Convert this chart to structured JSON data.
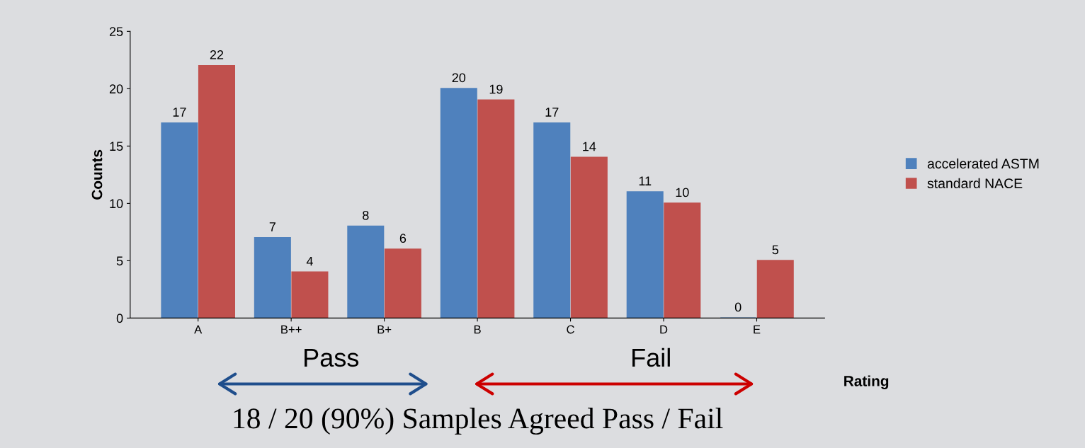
{
  "chart_data": {
    "type": "bar",
    "ylabel": "Counts",
    "xlabel": "Rating",
    "categories": [
      "A",
      "B++",
      "B+",
      "B",
      "C",
      "D",
      "E"
    ],
    "series": [
      {
        "name": "accelerated ASTM",
        "color": "#4f81bd",
        "values": [
          17,
          7,
          8,
          20,
          17,
          11,
          0
        ]
      },
      {
        "name": "standard NACE",
        "color": "#c0504d",
        "values": [
          22,
          4,
          6,
          19,
          14,
          10,
          5
        ]
      }
    ],
    "ylim": [
      0,
      25
    ],
    "yticks": [
      0,
      5,
      10,
      15,
      20,
      25
    ],
    "grid": false,
    "legend": "right",
    "data_labels": true,
    "annotations": [
      "Pass",
      "Fail",
      "18 / 20 (90%) Samples Agreed Pass / Fail"
    ]
  }
}
